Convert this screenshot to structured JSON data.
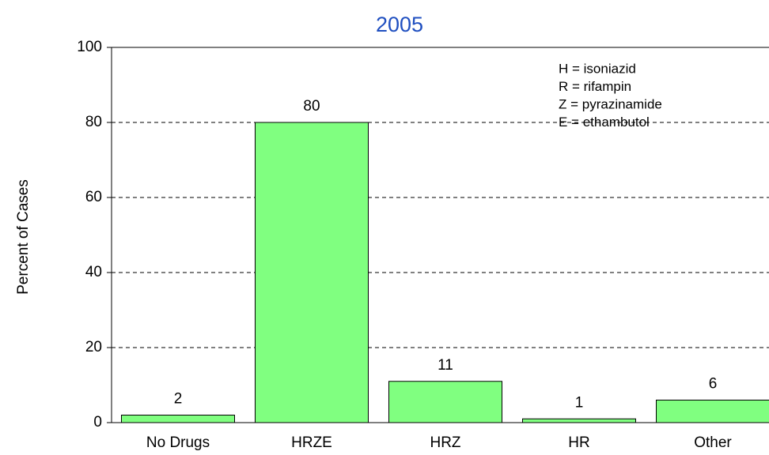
{
  "chart_data": {
    "type": "bar",
    "title": "2005",
    "ylabel": "Percent of Cases",
    "categories": [
      "No Drugs",
      "HRZE",
      "HRZ",
      "HR",
      "Other"
    ],
    "values": [
      2,
      80,
      11,
      1,
      6
    ],
    "color": "#80ff80",
    "ylim": [
      0,
      100
    ],
    "yticks": [
      0,
      20,
      40,
      60,
      80,
      100
    ],
    "grid": true,
    "annotations": [
      "H = isoniazid",
      "R = rifampin",
      "Z = pyrazinamide",
      "E = ethambutol"
    ]
  }
}
